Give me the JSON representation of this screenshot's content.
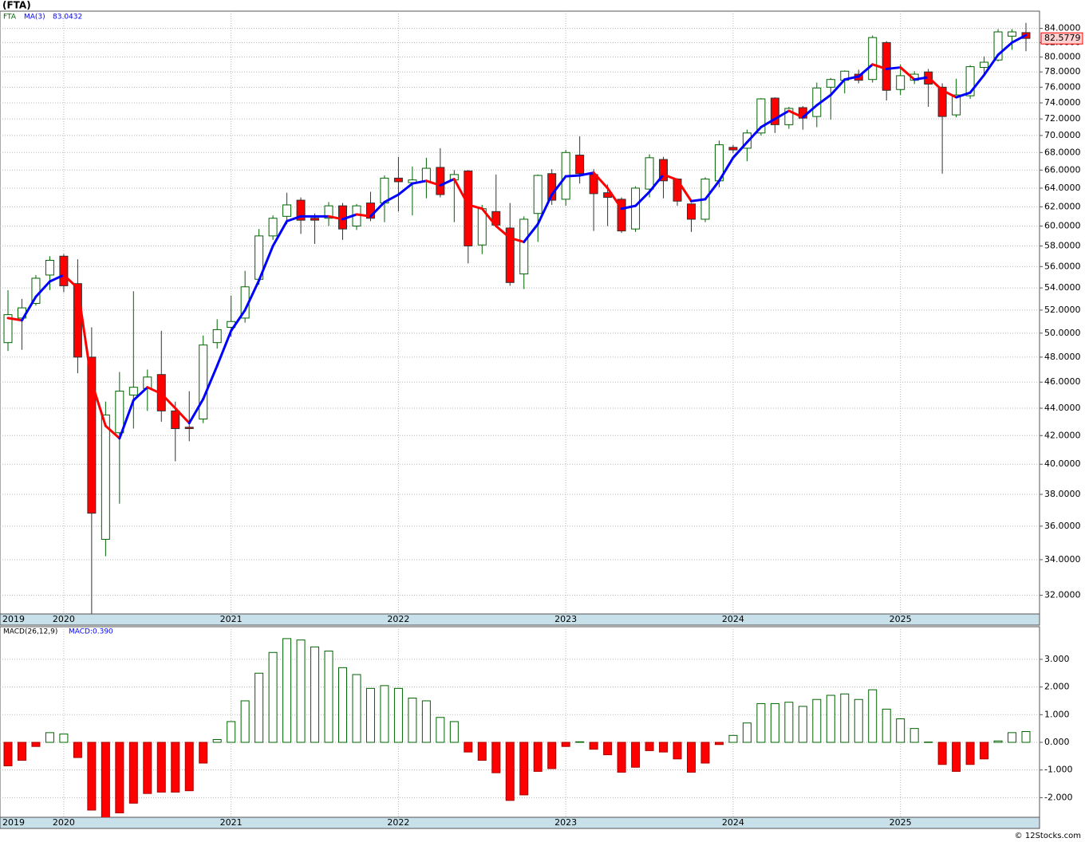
{
  "title": "(FTA)",
  "footer": "© 12Stocks.com",
  "chart_data": [
    {
      "type": "candlestick",
      "log_scale": true,
      "grid": true,
      "categories": [
        "2019",
        null,
        null,
        null,
        "2020",
        null,
        null,
        null,
        null,
        null,
        null,
        null,
        null,
        null,
        null,
        null,
        "2021",
        null,
        null,
        null,
        null,
        null,
        null,
        null,
        null,
        null,
        null,
        null,
        "2022",
        null,
        null,
        null,
        null,
        null,
        null,
        null,
        null,
        null,
        null,
        null,
        "2023",
        null,
        null,
        null,
        null,
        null,
        null,
        null,
        null,
        null,
        null,
        null,
        "2024",
        null,
        null,
        null,
        null,
        null,
        null,
        null,
        null,
        null,
        null,
        null,
        "2025",
        null,
        null,
        null,
        null,
        null,
        null,
        null,
        null,
        null
      ],
      "series": [
        {
          "name": "FTA",
          "color": "#006400",
          "up_color": "#ffffff",
          "down_color": "#ff0000",
          "open": [
            49.2,
            51.3,
            52.6,
            55.2,
            57.0,
            54.4,
            48.0,
            35.2,
            42.2,
            45.0,
            45.5,
            46.6,
            43.8,
            42.6,
            43.2,
            49.2,
            50.5,
            51.3,
            54.8,
            59.0,
            61.0,
            62.7,
            60.8,
            60.8,
            62.1,
            60.0,
            62.4,
            62.4,
            65.1,
            64.6,
            64.7,
            66.3,
            64.9,
            65.9,
            58.1,
            61.5,
            59.8,
            55.3,
            61.3,
            65.6,
            62.8,
            67.7,
            65.5,
            63.5,
            62.8,
            59.7,
            63.9,
            67.2,
            65.0,
            62.3,
            60.7,
            64.8,
            68.6,
            68.5,
            70.3,
            74.6,
            71.3,
            73.4,
            72.3,
            76.0,
            76.9,
            77.7,
            77.0,
            82.0,
            75.7,
            76.9,
            78.0,
            76.0,
            72.5,
            74.9,
            78.6,
            79.6,
            82.9,
            83.4
          ],
          "high": [
            53.8,
            53.0,
            55.2,
            57.0,
            57.2,
            56.7,
            50.5,
            44.5,
            46.8,
            53.7,
            47.0,
            50.2,
            44.5,
            45.3,
            49.8,
            51.2,
            53.3,
            55.6,
            59.7,
            61.1,
            63.5,
            63.0,
            61.3,
            62.5,
            62.4,
            62.3,
            63.6,
            65.4,
            67.5,
            66.4,
            67.4,
            68.5,
            66.0,
            66.0,
            62.2,
            65.5,
            62.4,
            61.0,
            65.5,
            66.1,
            68.3,
            69.9,
            66.1,
            64.4,
            63.0,
            64.2,
            67.8,
            67.5,
            65.1,
            62.4,
            65.2,
            69.4,
            68.9,
            70.7,
            74.6,
            74.7,
            73.5,
            73.6,
            76.6,
            77.2,
            78.2,
            78.3,
            83.0,
            82.2,
            79.0,
            78.1,
            78.4,
            76.5,
            77.1,
            78.9,
            80.1,
            83.9,
            83.9,
            84.8
          ],
          "low": [
            48.5,
            48.6,
            52.4,
            53.8,
            53.6,
            46.7,
            31.0,
            34.2,
            37.4,
            42.5,
            43.8,
            43.0,
            40.2,
            41.6,
            42.9,
            48.7,
            49.7,
            50.9,
            54.3,
            58.6,
            60.2,
            59.2,
            58.2,
            60.0,
            58.6,
            59.6,
            60.5,
            60.4,
            61.5,
            61.1,
            62.9,
            63.0,
            60.4,
            56.3,
            57.2,
            59.9,
            54.2,
            53.9,
            58.4,
            62.2,
            62.1,
            64.5,
            59.5,
            60.0,
            59.3,
            59.4,
            63.0,
            62.9,
            62.1,
            59.4,
            60.4,
            64.1,
            67.9,
            67.0,
            70.0,
            70.3,
            70.8,
            70.7,
            71.0,
            71.9,
            75.2,
            76.5,
            76.6,
            74.3,
            75.0,
            76.4,
            73.5,
            65.6,
            72.2,
            74.5,
            77.5,
            79.4,
            81.0,
            80.8
          ],
          "close": [
            51.6,
            52.2,
            54.9,
            56.6,
            54.2,
            48.0,
            36.8,
            43.5,
            45.3,
            45.6,
            46.4,
            43.8,
            42.5,
            42.5,
            49.0,
            50.3,
            51.0,
            54.1,
            59.0,
            60.8,
            62.2,
            60.6,
            60.6,
            62.1,
            59.7,
            62.1,
            60.8,
            65.1,
            64.7,
            64.9,
            66.2,
            63.3,
            65.5,
            58.0,
            61.8,
            60.1,
            54.5,
            60.7,
            65.4,
            62.7,
            68.0,
            65.6,
            63.4,
            63.0,
            59.5,
            64.0,
            67.4,
            64.8,
            62.6,
            60.7,
            65.0,
            68.9,
            68.3,
            70.3,
            74.5,
            71.3,
            73.3,
            72.1,
            75.9,
            77.0,
            78.1,
            76.9,
            82.7,
            75.6,
            77.5,
            77.7,
            76.4,
            72.3,
            75.0,
            78.7,
            79.3,
            83.5,
            83.5,
            82.5779
          ]
        },
        {
          "name": "MA(3)",
          "type": "line",
          "color": "#0000ff",
          "down_color": "#ff0000",
          "values": [
            51.3,
            51.1,
            53.2,
            54.6,
            55.2,
            54.0,
            46.0,
            42.7,
            41.8,
            44.6,
            45.6,
            45.1,
            44.0,
            42.9,
            44.7,
            47.3,
            50.2,
            52.0,
            54.7,
            58.0,
            60.5,
            61.0,
            61.0,
            61.0,
            60.7,
            61.2,
            61.0,
            62.5,
            63.3,
            64.5,
            64.8,
            64.3,
            65.0,
            62.2,
            61.8,
            60.0,
            58.8,
            58.4,
            60.2,
            63.3,
            65.3,
            65.4,
            65.7,
            64.0,
            61.8,
            62.1,
            63.6,
            65.5,
            64.9,
            62.6,
            62.8,
            64.8,
            67.4,
            69.2,
            71.0,
            72.0,
            73.0,
            72.2,
            73.7,
            75.0,
            77.0,
            77.4,
            79.0,
            78.4,
            78.6,
            77.0,
            77.3,
            75.6,
            74.7,
            75.3,
            77.6,
            80.3,
            82.0,
            83.0432
          ]
        }
      ],
      "ylim": [
        31,
        86.5
      ],
      "yticks": [
        {
          "value": 32,
          "label": "32.0000"
        },
        {
          "value": 34,
          "label": "34.0000"
        },
        {
          "value": 36,
          "label": "36.0000"
        },
        {
          "value": 38,
          "label": "38.0000"
        },
        {
          "value": 40,
          "label": "40.0000"
        },
        {
          "value": 42,
          "label": "42.0000"
        },
        {
          "value": 44,
          "label": "44.0000"
        },
        {
          "value": 46,
          "label": "46.0000"
        },
        {
          "value": 48,
          "label": "48.0000"
        },
        {
          "value": 50,
          "label": "50.0000"
        },
        {
          "value": 52,
          "label": "52.0000"
        },
        {
          "value": 54,
          "label": "54.0000"
        },
        {
          "value": 56,
          "label": "56.0000"
        },
        {
          "value": 58,
          "label": "58.0000"
        },
        {
          "value": 60,
          "label": "60.0000"
        },
        {
          "value": 62,
          "label": "62.0000"
        },
        {
          "value": 64,
          "label": "64.0000"
        },
        {
          "value": 66,
          "label": "66.0000"
        },
        {
          "value": 68,
          "label": "68.0000"
        },
        {
          "value": 70,
          "label": "70.0000"
        },
        {
          "value": 72,
          "label": "72.0000"
        },
        {
          "value": 74,
          "label": "74.0000"
        },
        {
          "value": 76,
          "label": "76.0000"
        },
        {
          "value": 78,
          "label": "78.0000"
        },
        {
          "value": 80,
          "label": "80.0000"
        },
        {
          "value": 82,
          "label": "82.0000"
        },
        {
          "value": 84,
          "label": "84.0000"
        }
      ]
    },
    {
      "type": "bar",
      "title": "MACD(26,12,9)",
      "legend_value": "MACD:0.390",
      "grid": true,
      "categories": [
        "2019",
        null,
        null,
        null,
        "2020",
        null,
        null,
        null,
        null,
        null,
        null,
        null,
        null,
        null,
        null,
        null,
        "2021",
        null,
        null,
        null,
        null,
        null,
        null,
        null,
        null,
        null,
        null,
        null,
        "2022",
        null,
        null,
        null,
        null,
        null,
        null,
        null,
        null,
        null,
        null,
        null,
        "2023",
        null,
        null,
        null,
        null,
        null,
        null,
        null,
        null,
        null,
        null,
        null,
        "2024",
        null,
        null,
        null,
        null,
        null,
        null,
        null,
        null,
        null,
        null,
        null,
        "2025",
        null,
        null,
        null,
        null,
        null,
        null,
        null,
        null,
        null
      ],
      "color": "#006400",
      "up_color": "#ffffff",
      "down_color": "#ff0000",
      "values": [
        -0.85,
        -0.65,
        -0.15,
        0.35,
        0.3,
        -0.55,
        -2.45,
        -2.75,
        -2.55,
        -2.2,
        -1.85,
        -1.8,
        -1.8,
        -1.75,
        -0.75,
        0.1,
        0.75,
        1.5,
        2.5,
        3.25,
        3.75,
        3.7,
        3.45,
        3.3,
        2.7,
        2.45,
        1.95,
        2.05,
        1.95,
        1.6,
        1.5,
        0.9,
        0.75,
        -0.35,
        -0.65,
        -1.1,
        -2.1,
        -1.9,
        -1.05,
        -0.95,
        -0.15,
        0.02,
        -0.25,
        -0.45,
        -1.08,
        -0.9,
        -0.3,
        -0.35,
        -0.6,
        -1.08,
        -0.75,
        -0.08,
        0.25,
        0.7,
        1.4,
        1.4,
        1.45,
        1.3,
        1.55,
        1.7,
        1.75,
        1.55,
        1.9,
        1.2,
        0.85,
        0.5,
        0.01,
        -0.8,
        -1.05,
        -0.8,
        -0.6,
        0.05,
        0.35,
        0.39
      ],
      "ylim": [
        -2.71,
        4.18
      ],
      "yticks": [
        {
          "value": -2,
          "label": "-2.000"
        },
        {
          "value": -1,
          "label": "-1.000"
        },
        {
          "value": 0,
          "label": "0.000"
        },
        {
          "value": 1,
          "label": "1.000"
        },
        {
          "value": 2,
          "label": "2.000"
        },
        {
          "value": 3,
          "label": "3.000"
        }
      ]
    }
  ]
}
